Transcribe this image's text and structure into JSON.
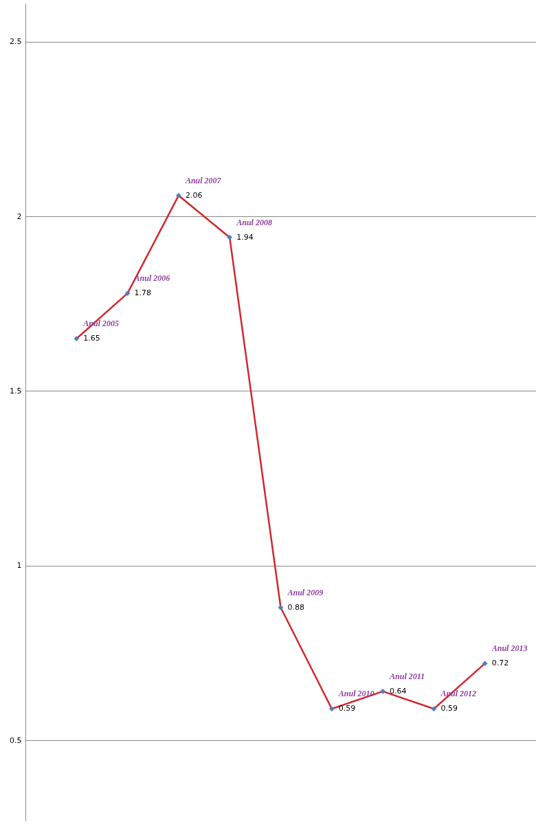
{
  "chart_data": {
    "type": "line",
    "categories": [
      null,
      null,
      null,
      null,
      null,
      null,
      null,
      null,
      null
    ],
    "series": [
      {
        "color": "#d0282e",
        "values": [
          1.65,
          1.78,
          2.06,
          1.94,
          0.88,
          0.59,
          0.64,
          0.59,
          0.72
        ]
      }
    ],
    "marker": "diamond",
    "data_labels": true,
    "ylim": [
      0.27,
      2.61
    ],
    "yticks": [
      0.5,
      1,
      1.5,
      2,
      2.5
    ],
    "grid": "y",
    "tick_labels": "y",
    "annotations": [
      "Anul 2005",
      "Anul 2006",
      "Anul 2007",
      "Anul 2008",
      "Anul 2009",
      "Anul 2010",
      "Anul 2011",
      "Anul 2012",
      "Anul 2013"
    ]
  }
}
